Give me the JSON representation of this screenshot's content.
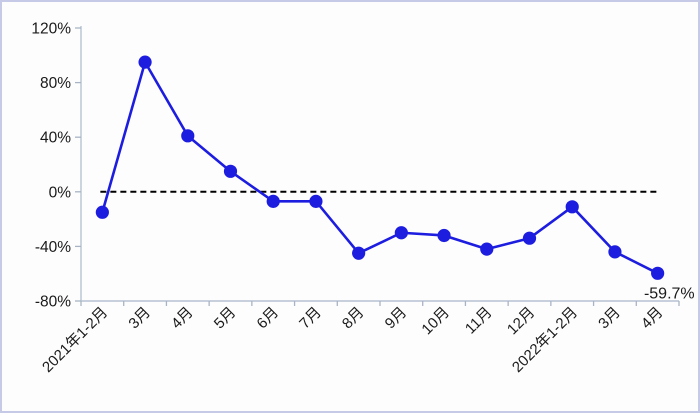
{
  "frame": {
    "background_color": "#fdfdfe",
    "border_color": "#c6cae7"
  },
  "chart_data": {
    "type": "line",
    "title": "",
    "xlabel": "",
    "ylabel": "",
    "legend": "none",
    "grid": "off",
    "categories": [
      "2021年1-2月",
      "3月",
      "4月",
      "5月",
      "6月",
      "7月",
      "8月",
      "9月",
      "10月",
      "11月",
      "12月",
      "2022年1-2月",
      "3月",
      "4月"
    ],
    "values": [
      -15,
      95,
      41,
      15,
      -7,
      -7,
      -45,
      -30,
      -32,
      -42,
      -34,
      -11,
      -44,
      -59.7
    ],
    "ylim": [
      -80,
      120
    ],
    "ytick_values": [
      120,
      80,
      40,
      0,
      -40,
      -80
    ],
    "ytick_labels": [
      "120%",
      "80%",
      "40%",
      "0%",
      "-40%",
      "-80%"
    ],
    "zero_line": {
      "value": 0,
      "style": "dashed",
      "color": "#000000",
      "spans": "first point to last point"
    },
    "annotation": {
      "category_index": 13,
      "category": "4月",
      "text": "-59.7%"
    },
    "colors": {
      "line": "#1d1de0",
      "marker": "#1d1de0",
      "axis": "#b7c2d2",
      "tick": "#a8b4c4",
      "label_text": "#1a1a1a"
    }
  }
}
